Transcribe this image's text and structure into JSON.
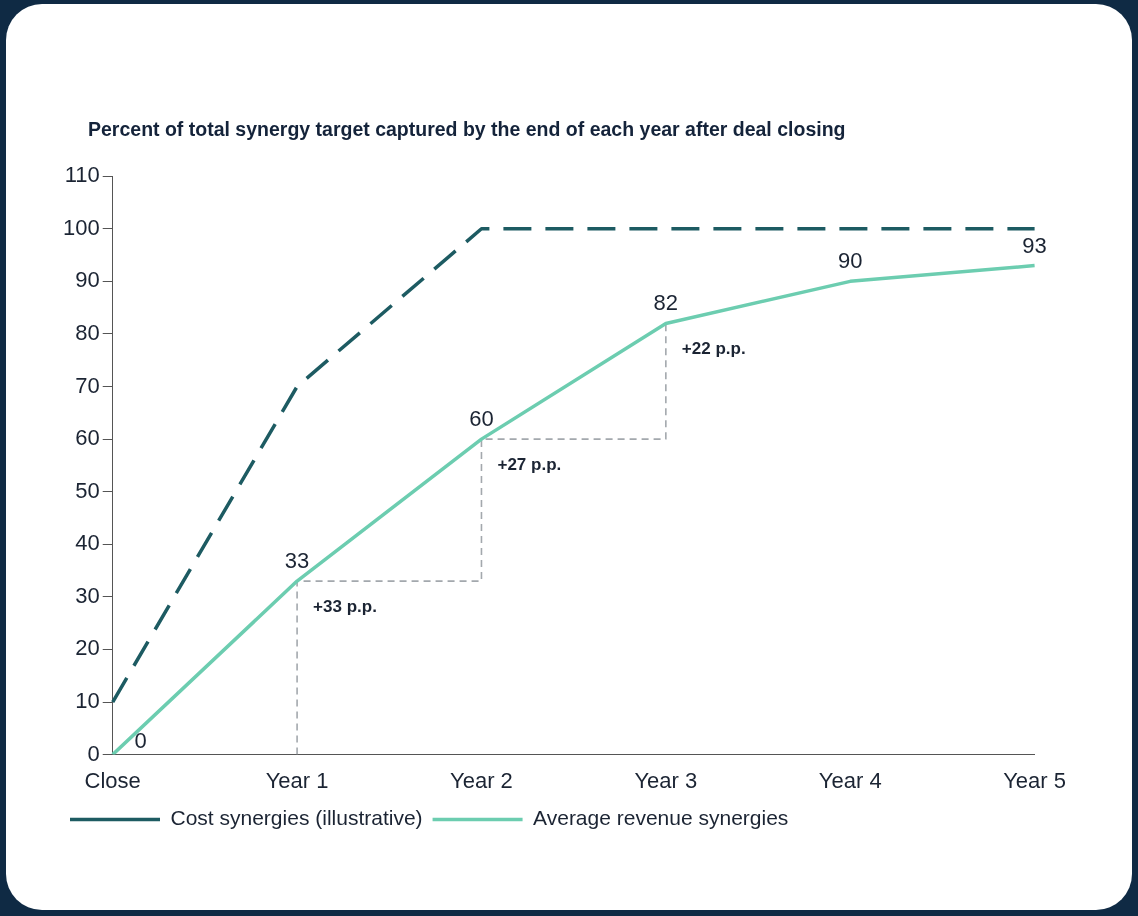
{
  "chart_data": {
    "type": "line",
    "title": "Percent of total synergy target captured by the end of each year after deal closing",
    "categories": [
      "Close",
      "Year 1",
      "Year 2",
      "Year 3",
      "Year 4",
      "Year 5"
    ],
    "series": [
      {
        "name": "Cost synergies (illustrative)",
        "color": "#1d5b62",
        "values": [
          10,
          70,
          100,
          100,
          100,
          100
        ],
        "line_style": "dashed"
      },
      {
        "name": "Average revenue synergies",
        "color": "#6ccdb0",
        "values": [
          0,
          33,
          60,
          82,
          90,
          93
        ],
        "value_labels": [
          "0",
          "33",
          "60",
          "82",
          "90",
          "93"
        ]
      },
      {
        "type": "step",
        "color": "#a3a8ad",
        "line_style": "dashed",
        "x": [
          "Year 1",
          "Year 1",
          "Year 2",
          "Year 3"
        ],
        "values": [
          0,
          33,
          60,
          82
        ]
      }
    ],
    "ylim": [
      0,
      110
    ],
    "yticks": [
      0,
      10,
      20,
      30,
      40,
      50,
      60,
      70,
      80,
      90,
      100,
      110
    ],
    "grid": false,
    "legend": "bottom left",
    "marker": "none",
    "annotations": [
      {
        "text": "+33 p.p.",
        "x": "Year 1",
        "y": 28
      },
      {
        "text": "+27 p.p.",
        "x": "Year 2",
        "y": 55
      },
      {
        "text": "+22 p.p.",
        "x": "Year 3",
        "y": 77
      }
    ]
  }
}
